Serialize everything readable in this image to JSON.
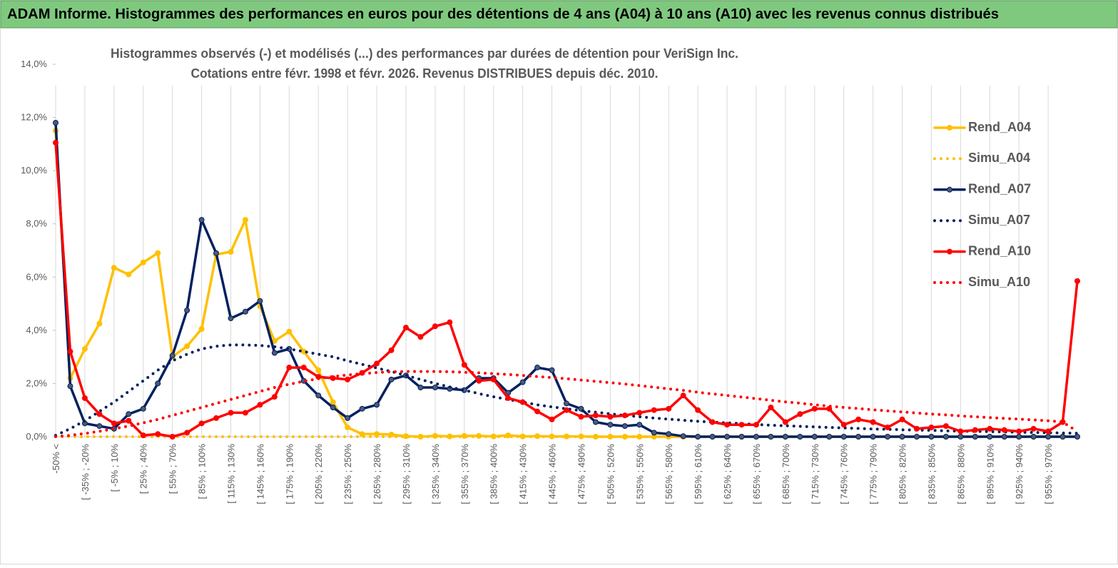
{
  "header": {
    "title": "ADAM Informe. Histogrammes des performances en euros pour des détentions de 4 ans (A04) à 10 ans (A10) avec les revenus connus distribués"
  },
  "chart_data": {
    "type": "line",
    "title": "Histogrammes observés (-) et modélisés (...) des performances par durées de détention pour VeriSign Inc.",
    "subtitle": "Cotations entre févr. 1998 et févr. 2026. Revenus DISTRIBUES depuis déc. 2010.",
    "categories": [
      "-50% <",
      null,
      "[ -35% ; -20%",
      null,
      "[ -5% ; 10%",
      null,
      "[ 25% ; 40%",
      null,
      "[ 55% ; 70%",
      null,
      "[ 85% ; 100%",
      null,
      "[ 115% ; 130%",
      null,
      "[ 145% ; 160%",
      null,
      "[ 175% ; 190%",
      null,
      "[ 205% ; 220%",
      null,
      "[ 235% ; 250%",
      null,
      "[ 265% ; 280%",
      null,
      "[ 295% ; 310%",
      null,
      "[ 325% ; 340%",
      null,
      "[ 355% ; 370%",
      null,
      "[ 385% ; 400%",
      null,
      "[ 415% ; 430%",
      null,
      "[ 445% ; 460%",
      null,
      "[ 475% ; 490%",
      null,
      "[ 505% ; 520%",
      null,
      "[ 535% ; 550%",
      null,
      "[ 565% ; 580%",
      null,
      "[ 595% ; 610%",
      null,
      "[ 625% ; 640%",
      null,
      "[ 655% ; 670%",
      null,
      "[ 685% ; 700%",
      null,
      "[ 715% ; 730%",
      null,
      "[ 745% ; 760%",
      null,
      "[ 775% ; 790%",
      null,
      "[ 805% ; 820%",
      null,
      "[ 835% ; 850%",
      null,
      "[ 865% ; 880%",
      null,
      "[ 895% ; 910%",
      null,
      "[ 925% ; 940%",
      null,
      "[ 955% ; 970%",
      null,
      null
    ],
    "ylim": [
      0,
      14
    ],
    "yticks": [
      {
        "value": 0,
        "label": "0,0%"
      },
      {
        "value": 2,
        "label": "2,0%"
      },
      {
        "value": 4,
        "label": "4,0%"
      },
      {
        "value": 6,
        "label": "6,0%"
      },
      {
        "value": 8,
        "label": "8,0%"
      },
      {
        "value": 10,
        "label": "10,0%"
      },
      {
        "value": 12,
        "label": "12,0%"
      },
      {
        "value": 14,
        "label": "14,0%"
      }
    ],
    "grid": "vertical",
    "legend": "right",
    "series": [
      {
        "name": "Rend_A04",
        "color": "#ffc000",
        "marker_color": "#ffc000",
        "line_style": "solid",
        "markers": true,
        "values": [
          11.5,
          2.2,
          3.3,
          4.25,
          6.35,
          6.1,
          6.55,
          6.9,
          3.0,
          3.4,
          4.05,
          6.85,
          6.95,
          8.15,
          4.9,
          3.6,
          3.95,
          3.2,
          2.5,
          1.3,
          0.35,
          0.1,
          0.1,
          0.08,
          0.02,
          0,
          0.03,
          0.01,
          0.03,
          0.03,
          0.01,
          0.05,
          0.01,
          0.02,
          0.01,
          0.01,
          0.01,
          0,
          0,
          0,
          0,
          0,
          0,
          0,
          0,
          0,
          0,
          0,
          0,
          0,
          0,
          0,
          0,
          0,
          0,
          0,
          0,
          0,
          0,
          0,
          0,
          0,
          0,
          0,
          0,
          0,
          0,
          0,
          0,
          0,
          0
        ]
      },
      {
        "name": "Simu_A04",
        "color": "#ffc000",
        "line_style": "dotted",
        "markers": false,
        "values": [
          0,
          0,
          0,
          0,
          0,
          0,
          0,
          0,
          0,
          0,
          0,
          0,
          0,
          0,
          0,
          0,
          0,
          0,
          0,
          0,
          0,
          0,
          0,
          0,
          0,
          0,
          0,
          0,
          0,
          0,
          0,
          0,
          0,
          0,
          0,
          0,
          0,
          0,
          0,
          0,
          0,
          0,
          0,
          0,
          0,
          0,
          0,
          0,
          0,
          0,
          0,
          0,
          0,
          0,
          0,
          0,
          0,
          0,
          0,
          0,
          0,
          0,
          0,
          0,
          0,
          0,
          0,
          0,
          0,
          0,
          0
        ]
      },
      {
        "name": "Rend_A07",
        "color": "#002060",
        "marker_color": "#4a5a78",
        "line_style": "solid",
        "markers": true,
        "values": [
          11.8,
          1.9,
          0.5,
          0.4,
          0.3,
          0.85,
          1.05,
          2.0,
          3.05,
          4.75,
          8.15,
          6.9,
          4.45,
          4.7,
          5.1,
          3.15,
          3.3,
          2.1,
          1.55,
          1.1,
          0.7,
          1.05,
          1.2,
          2.15,
          2.3,
          1.85,
          1.85,
          1.8,
          1.75,
          2.2,
          2.2,
          1.65,
          2.05,
          2.6,
          2.5,
          1.25,
          1.05,
          0.55,
          0.45,
          0.4,
          0.45,
          0.15,
          0.1,
          0.02,
          0,
          0,
          0,
          0,
          0,
          0,
          0,
          0,
          0,
          0,
          0,
          0,
          0,
          0,
          0,
          0,
          0,
          0,
          0,
          0,
          0,
          0,
          0,
          0,
          0,
          0,
          0
        ]
      },
      {
        "name": "Simu_A07",
        "color": "#002060",
        "line_style": "dotted",
        "markers": false,
        "values": [
          0.05,
          0.3,
          0.6,
          0.95,
          1.3,
          1.7,
          2.1,
          2.5,
          2.85,
          3.1,
          3.3,
          3.4,
          3.45,
          3.45,
          3.43,
          3.38,
          3.3,
          3.2,
          3.1,
          3.0,
          2.85,
          2.72,
          2.58,
          2.45,
          2.3,
          2.15,
          2.0,
          1.87,
          1.75,
          1.62,
          1.5,
          1.4,
          1.3,
          1.2,
          1.12,
          1.05,
          0.98,
          0.92,
          0.86,
          0.8,
          0.75,
          0.7,
          0.66,
          0.62,
          0.58,
          0.55,
          0.52,
          0.49,
          0.46,
          0.43,
          0.41,
          0.39,
          0.37,
          0.35,
          0.33,
          0.31,
          0.29,
          0.28,
          0.26,
          0.25,
          0.24,
          0.22,
          0.21,
          0.2,
          0.19,
          0.18,
          0.17,
          0.16,
          0.15,
          0.14,
          0.13
        ]
      },
      {
        "name": "Rend_A10",
        "color": "#ff0000",
        "marker_color": "#ff0000",
        "line_style": "solid",
        "markers": true,
        "values": [
          11.05,
          3.2,
          1.45,
          0.85,
          0.5,
          0.6,
          0.05,
          0.1,
          0,
          0.15,
          0.5,
          0.7,
          0.9,
          0.9,
          1.2,
          1.5,
          2.6,
          2.6,
          2.25,
          2.2,
          2.15,
          2.4,
          2.75,
          3.25,
          4.1,
          3.75,
          4.15,
          4.3,
          2.7,
          2.1,
          2.15,
          1.45,
          1.3,
          0.95,
          0.65,
          1.0,
          0.75,
          0.8,
          0.75,
          0.8,
          0.9,
          1.0,
          1.05,
          1.55,
          1.0,
          0.55,
          0.45,
          0.45,
          0.45,
          1.1,
          0.55,
          0.85,
          1.05,
          1.05,
          0.45,
          0.65,
          0.55,
          0.35,
          0.65,
          0.3,
          0.35,
          0.4,
          0.2,
          0.25,
          0.3,
          0.25,
          0.2,
          0.3,
          0.2,
          0.55,
          5.85
        ]
      },
      {
        "name": "Simu_A10",
        "color": "#ff0000",
        "line_style": "dotted",
        "markers": false,
        "values": [
          0,
          0.05,
          0.12,
          0.2,
          0.3,
          0.4,
          0.52,
          0.65,
          0.8,
          0.95,
          1.1,
          1.25,
          1.4,
          1.55,
          1.7,
          1.85,
          1.97,
          2.08,
          2.18,
          2.26,
          2.32,
          2.37,
          2.41,
          2.44,
          2.45,
          2.45,
          2.45,
          2.44,
          2.42,
          2.4,
          2.37,
          2.34,
          2.3,
          2.26,
          2.22,
          2.18,
          2.13,
          2.08,
          2.03,
          1.98,
          1.92,
          1.86,
          1.8,
          1.74,
          1.67,
          1.61,
          1.55,
          1.49,
          1.43,
          1.37,
          1.31,
          1.26,
          1.2,
          1.15,
          1.1,
          1.06,
          1.01,
          0.97,
          0.93,
          0.89,
          0.85,
          0.82,
          0.78,
          0.75,
          0.72,
          0.69,
          0.66,
          0.63,
          0.6,
          0.55,
          0.2
        ]
      }
    ]
  }
}
